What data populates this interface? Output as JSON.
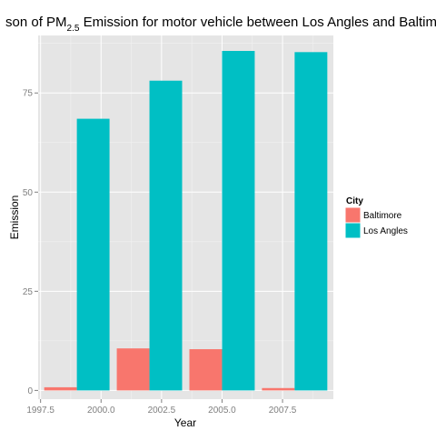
{
  "chart_data": {
    "type": "bar",
    "title_parts": {
      "before": "son of PM",
      "subscript": "2.5",
      "after": " Emission for motor vehicle between Los Angles and Baltimore"
    },
    "xlabel": "Year",
    "ylabel": "Emission",
    "categories": [
      1999,
      2002,
      2005,
      2008
    ],
    "x_ticks": [
      {
        "value": 1997.5,
        "label": "1997.5"
      },
      {
        "value": 2000.0,
        "label": "2000.0"
      },
      {
        "value": 2002.5,
        "label": "2002.5"
      },
      {
        "value": 2005.0,
        "label": "2005.0"
      },
      {
        "value": 2007.5,
        "label": "2007.5"
      }
    ],
    "y_ticks": [
      {
        "value": 0,
        "label": "0"
      },
      {
        "value": 25,
        "label": "25"
      },
      {
        "value": 50,
        "label": "50"
      },
      {
        "value": 75,
        "label": "75"
      }
    ],
    "xlim": [
      1997.4,
      2009.6
    ],
    "ylim": [
      -2.2,
      89.5
    ],
    "legend": {
      "title": "City",
      "position": "right"
    },
    "series": [
      {
        "name": "Baltimore",
        "color": "#F8766D",
        "values": [
          0.8,
          10.6,
          10.4,
          0.6
        ]
      },
      {
        "name": "Los Angles",
        "color": "#00BFC4",
        "values": [
          68.5,
          78.1,
          85.6,
          85.3
        ]
      }
    ],
    "grid": true,
    "panel_background": "#E5E5E5",
    "grid_color": "#FFFFFF"
  }
}
